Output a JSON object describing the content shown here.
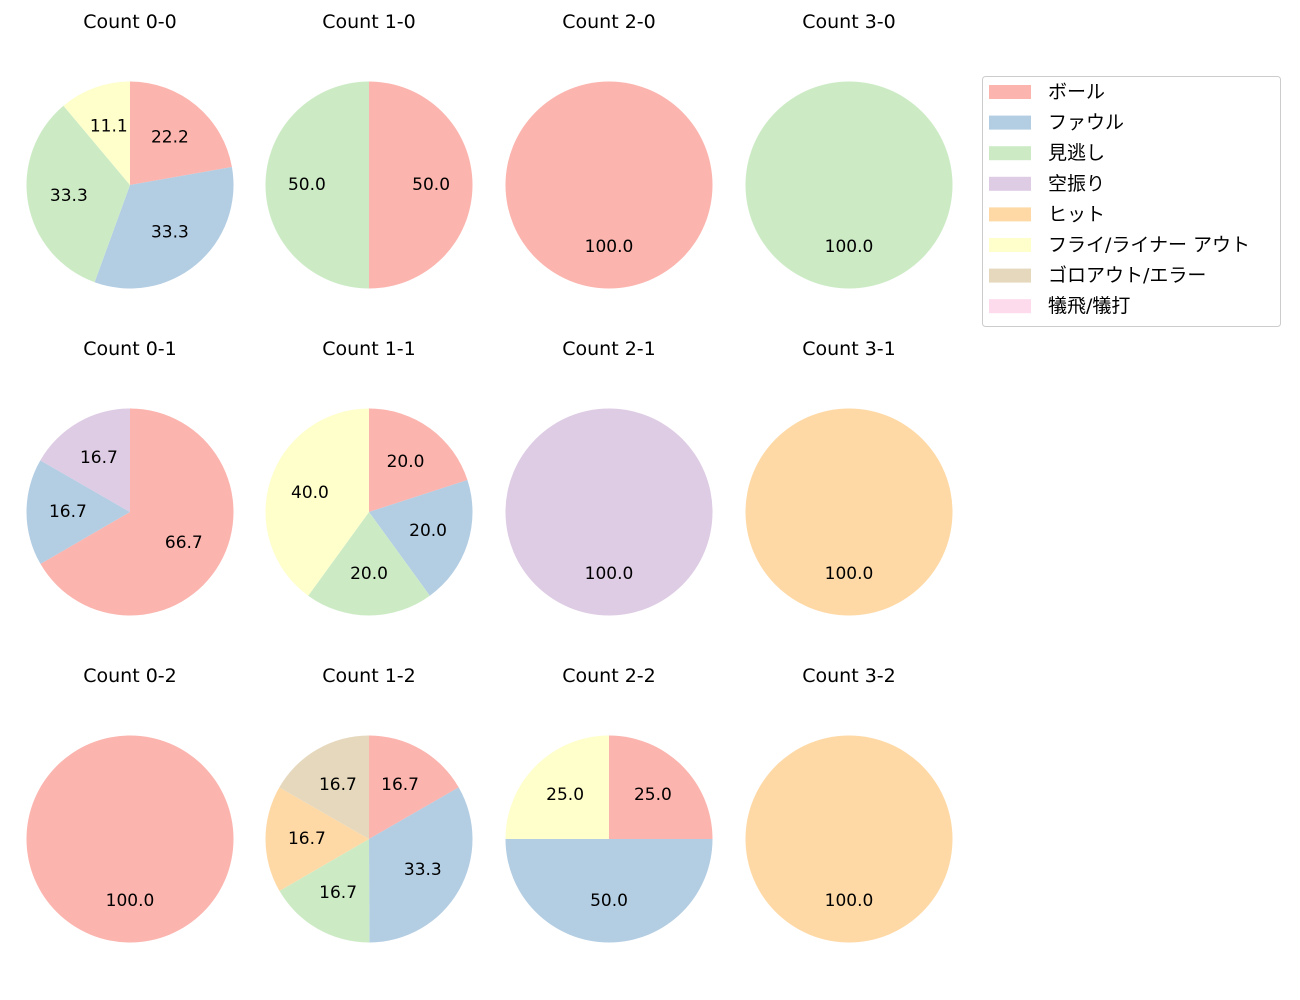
{
  "chart_data": [
    {
      "type": "pie",
      "title": "Count 0-0",
      "series": [
        {
          "category": "ボール",
          "value": 22.2
        },
        {
          "category": "ファウル",
          "value": 33.3
        },
        {
          "category": "見逃し",
          "value": 33.3
        },
        {
          "category": "フライ/ライナー アウト",
          "value": 11.1
        }
      ]
    },
    {
      "type": "pie",
      "title": "Count 1-0",
      "series": [
        {
          "category": "ボール",
          "value": 50.0
        },
        {
          "category": "見逃し",
          "value": 50.0
        }
      ]
    },
    {
      "type": "pie",
      "title": "Count 2-0",
      "series": [
        {
          "category": "ボール",
          "value": 100.0
        }
      ]
    },
    {
      "type": "pie",
      "title": "Count 3-0",
      "series": [
        {
          "category": "見逃し",
          "value": 100.0
        }
      ]
    },
    {
      "type": "pie",
      "title": "Count 0-1",
      "series": [
        {
          "category": "ボール",
          "value": 66.7
        },
        {
          "category": "ファウル",
          "value": 16.7
        },
        {
          "category": "空振り",
          "value": 16.7
        }
      ]
    },
    {
      "type": "pie",
      "title": "Count 1-1",
      "series": [
        {
          "category": "ボール",
          "value": 20.0
        },
        {
          "category": "ファウル",
          "value": 20.0
        },
        {
          "category": "見逃し",
          "value": 20.0
        },
        {
          "category": "フライ/ライナー アウト",
          "value": 40.0
        }
      ]
    },
    {
      "type": "pie",
      "title": "Count 2-1",
      "series": [
        {
          "category": "空振り",
          "value": 100.0
        }
      ]
    },
    {
      "type": "pie",
      "title": "Count 3-1",
      "series": [
        {
          "category": "ヒット",
          "value": 100.0
        }
      ]
    },
    {
      "type": "pie",
      "title": "Count 0-2",
      "series": [
        {
          "category": "ボール",
          "value": 100.0
        }
      ]
    },
    {
      "type": "pie",
      "title": "Count 1-2",
      "series": [
        {
          "category": "ボール",
          "value": 16.7
        },
        {
          "category": "ファウル",
          "value": 33.3
        },
        {
          "category": "見逃し",
          "value": 16.7
        },
        {
          "category": "ヒット",
          "value": 16.7
        },
        {
          "category": "ゴロアウト/エラー",
          "value": 16.7
        }
      ]
    },
    {
      "type": "pie",
      "title": "Count 2-2",
      "series": [
        {
          "category": "ボール",
          "value": 25.0
        },
        {
          "category": "ファウル",
          "value": 50.0
        },
        {
          "category": "フライ/ライナー アウト",
          "value": 25.0
        }
      ]
    },
    {
      "type": "pie",
      "title": "Count 3-2",
      "series": [
        {
          "category": "ヒット",
          "value": 100.0
        }
      ]
    }
  ],
  "legend": {
    "placement": "right",
    "items": [
      {
        "label": "ボール",
        "color": "#fbb4ae"
      },
      {
        "label": "ファウル",
        "color": "#b3cde3"
      },
      {
        "label": "見逃し",
        "color": "#ccebc5"
      },
      {
        "label": "空振り",
        "color": "#decbe4"
      },
      {
        "label": "ヒット",
        "color": "#fed9a6"
      },
      {
        "label": "フライ/ライナー アウト",
        "color": "#ffffcc"
      },
      {
        "label": "ゴロアウト/エラー",
        "color": "#e5d8bd"
      },
      {
        "label": "犠飛/犠打",
        "color": "#fddaec"
      }
    ]
  }
}
